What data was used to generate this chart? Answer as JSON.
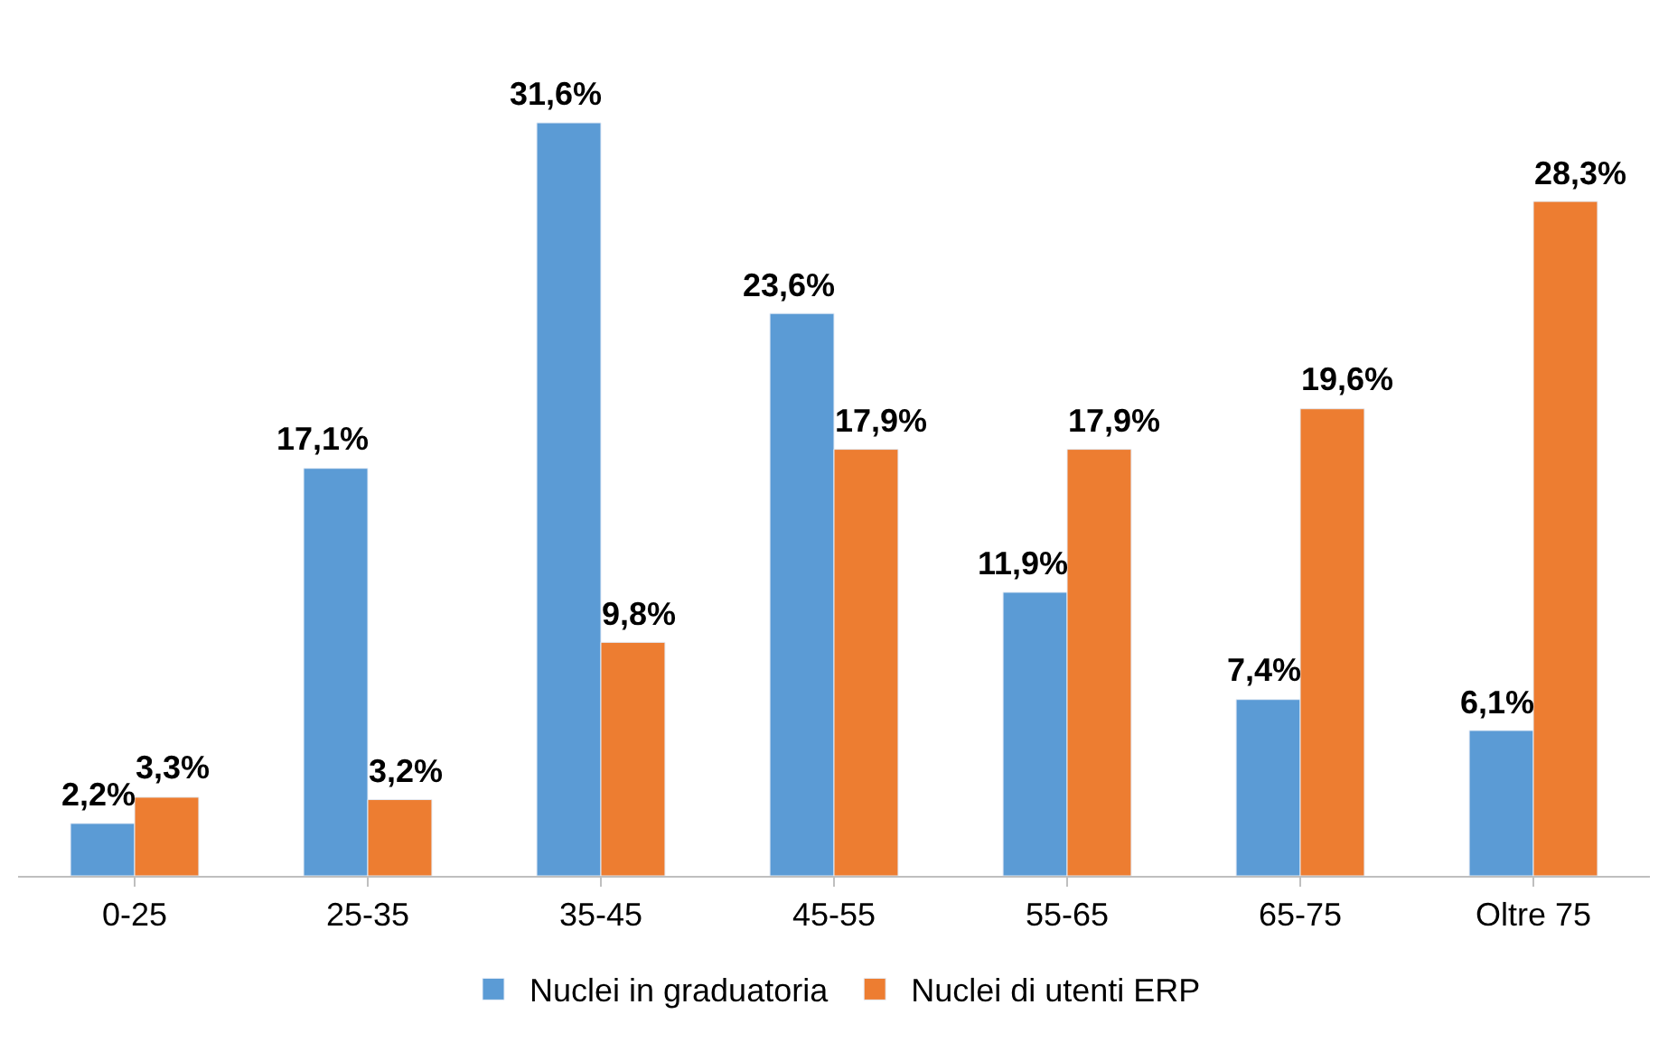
{
  "chart_data": {
    "type": "bar",
    "categories": [
      "0-25",
      "25-35",
      "35-45",
      "45-55",
      "55-65",
      "65-75",
      "Oltre 75"
    ],
    "series": [
      {
        "name": "Nuclei in graduatoria",
        "color": "#5b9bd5",
        "values": [
          2.2,
          17.1,
          31.6,
          23.6,
          11.9,
          7.4,
          6.1
        ],
        "value_labels": [
          "2,2%",
          "17,1%",
          "31,6%",
          "23,6%",
          "11,9%",
          "7,4%",
          "6,1%"
        ]
      },
      {
        "name": "Nuclei di utenti ERP",
        "color": "#ed7d31",
        "values": [
          3.3,
          3.2,
          9.8,
          17.9,
          17.9,
          19.6,
          28.3
        ],
        "value_labels": [
          "3,3%",
          "3,2%",
          "9,8%",
          "17,9%",
          "17,9%",
          "19,6%",
          "28,3%"
        ]
      }
    ],
    "legend": "bottom"
  }
}
